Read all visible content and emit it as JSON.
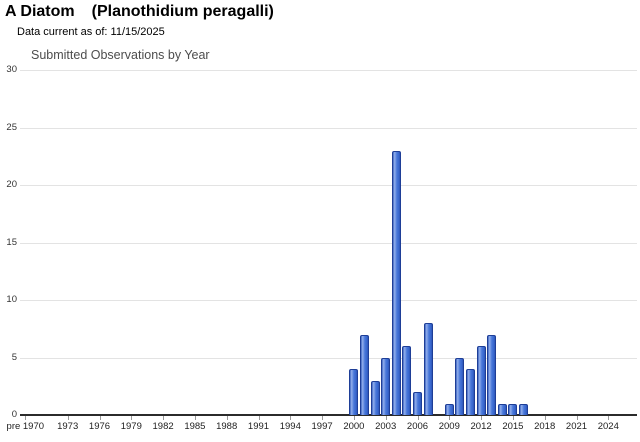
{
  "header": {
    "common_name": "A Diatom",
    "scientific_name": "(Planothidium peragalli)",
    "data_current": "Data current as of: 11/15/2025"
  },
  "chart_data": {
    "type": "bar",
    "title": "Submitted Observations by Year",
    "xlabel": "",
    "ylabel": "",
    "ylim": [
      0,
      30
    ],
    "ytick_step": 5,
    "yticks": [
      0,
      5,
      10,
      15,
      20,
      25,
      30
    ],
    "grid": "horizontal",
    "legend": "none",
    "bar_fill_color": "#4877d9",
    "bar_border_color": "#1e3e97",
    "gridline_color": "#e3e3e3",
    "axis_color": "#2b2b2b",
    "categories": [
      "pre 1970",
      "1970",
      "1971",
      "1972",
      "1973",
      "1974",
      "1975",
      "1976",
      "1977",
      "1978",
      "1979",
      "1980",
      "1981",
      "1982",
      "1983",
      "1984",
      "1985",
      "1986",
      "1987",
      "1988",
      "1989",
      "1990",
      "1991",
      "1992",
      "1993",
      "1994",
      "1995",
      "1996",
      "1997",
      "1998",
      "1999",
      "2000",
      "2001",
      "2002",
      "2003",
      "2004",
      "2005",
      "2006",
      "2007",
      "2008",
      "2009",
      "2010",
      "2011",
      "2012",
      "2013",
      "2014",
      "2015",
      "2016",
      "2017",
      "2018",
      "2019",
      "2020",
      "2021",
      "2022",
      "2023",
      "2024"
    ],
    "values": [
      0,
      0,
      0,
      0,
      0,
      0,
      0,
      0,
      0,
      0,
      0,
      0,
      0,
      0,
      0,
      0,
      0,
      0,
      0,
      0,
      0,
      0,
      0,
      0,
      0,
      0,
      0,
      0,
      0,
      0,
      0,
      4,
      7,
      3,
      5,
      23,
      6,
      2,
      8,
      0,
      1,
      5,
      4,
      6,
      7,
      1,
      1,
      1,
      0,
      0,
      0,
      0,
      0,
      0,
      0,
      0
    ],
    "x_tick_labels": [
      "pre 1970",
      "1973",
      "1976",
      "1979",
      "1982",
      "1985",
      "1988",
      "1991",
      "1994",
      "1997",
      "2000",
      "2003",
      "2006",
      "2009",
      "2012",
      "2015",
      "2018",
      "2021",
      "2024"
    ]
  }
}
